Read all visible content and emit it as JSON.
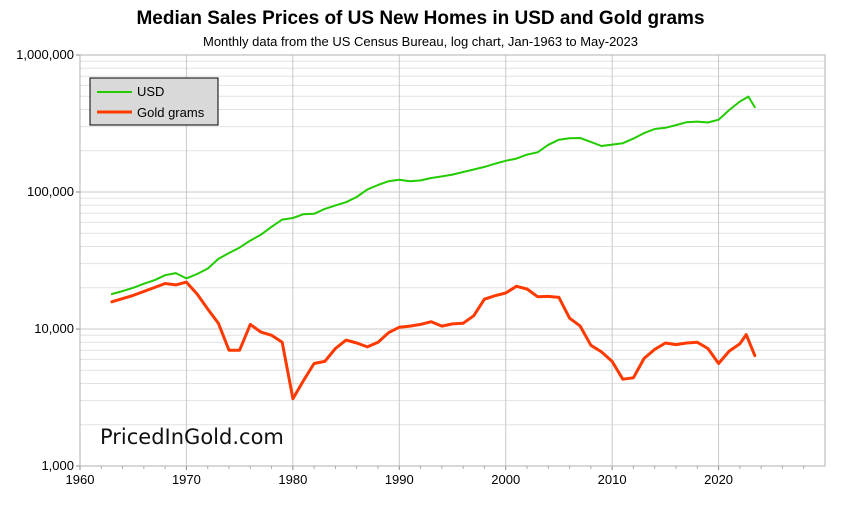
{
  "chart_data": {
    "type": "line",
    "title": "Median Sales Prices of US New Homes in USD and Gold grams",
    "subtitle": "Monthly data from the US Census Bureau, log chart, Jan-1963 to May-2023",
    "xlabel": "",
    "ylabel": "",
    "y_scale": "log",
    "xlim": [
      1960,
      2030
    ],
    "ylim": [
      1000,
      1000000
    ],
    "x_ticks": [
      "1960",
      "1970",
      "1980",
      "1990",
      "2000",
      "2010",
      "2020"
    ],
    "y_ticks": [
      "1,000",
      "10,000",
      "100,000",
      "1,000,000"
    ],
    "grid": true,
    "legend_position": "top-left",
    "watermark": "PricedInGold.com",
    "colors": {
      "usd": "#22cc00",
      "gold": "#ff3a00"
    },
    "series": [
      {
        "name": "USD",
        "points": [
          [
            1963.0,
            18000
          ],
          [
            1964.0,
            18900
          ],
          [
            1965.0,
            20000
          ],
          [
            1966.0,
            21400
          ],
          [
            1967.0,
            22700
          ],
          [
            1968.0,
            24700
          ],
          [
            1969.0,
            25600
          ],
          [
            1970.0,
            23400
          ],
          [
            1971.0,
            25200
          ],
          [
            1972.0,
            27600
          ],
          [
            1973.0,
            32500
          ],
          [
            1974.0,
            35900
          ],
          [
            1975.0,
            39300
          ],
          [
            1976.0,
            44200
          ],
          [
            1977.0,
            48800
          ],
          [
            1978.0,
            55700
          ],
          [
            1979.0,
            62900
          ],
          [
            1980.0,
            64600
          ],
          [
            1981.0,
            68900
          ],
          [
            1982.0,
            69300
          ],
          [
            1983.0,
            75300
          ],
          [
            1984.0,
            79900
          ],
          [
            1985.0,
            84300
          ],
          [
            1986.0,
            92000
          ],
          [
            1987.0,
            104500
          ],
          [
            1988.0,
            112500
          ],
          [
            1989.0,
            120000
          ],
          [
            1990.0,
            122900
          ],
          [
            1991.0,
            120000
          ],
          [
            1992.0,
            121500
          ],
          [
            1993.0,
            126500
          ],
          [
            1994.0,
            130000
          ],
          [
            1995.0,
            133900
          ],
          [
            1996.0,
            140000
          ],
          [
            1997.0,
            146000
          ],
          [
            1998.0,
            152500
          ],
          [
            1999.0,
            161000
          ],
          [
            2000.0,
            169000
          ],
          [
            2001.0,
            175200
          ],
          [
            2002.0,
            187600
          ],
          [
            2003.0,
            195000
          ],
          [
            2004.0,
            221000
          ],
          [
            2005.0,
            240900
          ],
          [
            2006.0,
            246500
          ],
          [
            2007.0,
            247900
          ],
          [
            2008.0,
            232100
          ],
          [
            2009.0,
            216700
          ],
          [
            2010.0,
            221800
          ],
          [
            2011.0,
            227200
          ],
          [
            2012.0,
            245200
          ],
          [
            2013.0,
            268900
          ],
          [
            2014.0,
            288500
          ],
          [
            2015.0,
            294200
          ],
          [
            2016.0,
            307800
          ],
          [
            2017.0,
            323100
          ],
          [
            2018.0,
            326400
          ],
          [
            2019.0,
            321500
          ],
          [
            2020.0,
            336900
          ],
          [
            2021.0,
            397100
          ],
          [
            2022.0,
            457800
          ],
          [
            2022.8,
            496800
          ],
          [
            2023.4,
            416300
          ]
        ]
      },
      {
        "name": "Gold grams",
        "points": [
          [
            1963.0,
            15800
          ],
          [
            1965.0,
            17600
          ],
          [
            1967.0,
            20100
          ],
          [
            1968.0,
            21500
          ],
          [
            1969.0,
            21000
          ],
          [
            1970.0,
            22000
          ],
          [
            1971.0,
            18000
          ],
          [
            1972.0,
            14000
          ],
          [
            1973.0,
            11000
          ],
          [
            1974.0,
            7000
          ],
          [
            1975.0,
            7000
          ],
          [
            1976.0,
            10800
          ],
          [
            1977.0,
            9500
          ],
          [
            1978.0,
            9000
          ],
          [
            1979.0,
            8000
          ],
          [
            1980.0,
            3100
          ],
          [
            1981.0,
            4200
          ],
          [
            1982.0,
            5600
          ],
          [
            1983.0,
            5800
          ],
          [
            1984.0,
            7200
          ],
          [
            1985.0,
            8300
          ],
          [
            1986.0,
            7900
          ],
          [
            1987.0,
            7400
          ],
          [
            1988.0,
            8000
          ],
          [
            1989.0,
            9400
          ],
          [
            1990.0,
            10300
          ],
          [
            1991.0,
            10500
          ],
          [
            1992.0,
            10800
          ],
          [
            1993.0,
            11300
          ],
          [
            1994.0,
            10500
          ],
          [
            1995.0,
            10900
          ],
          [
            1996.0,
            11000
          ],
          [
            1997.0,
            12500
          ],
          [
            1998.0,
            16500
          ],
          [
            1999.0,
            17500
          ],
          [
            2000.0,
            18300
          ],
          [
            2001.0,
            20500
          ],
          [
            2002.0,
            19600
          ],
          [
            2003.0,
            17200
          ],
          [
            2004.0,
            17300
          ],
          [
            2005.0,
            17000
          ],
          [
            2006.0,
            12000
          ],
          [
            2007.0,
            10500
          ],
          [
            2008.0,
            7600
          ],
          [
            2009.0,
            6800
          ],
          [
            2010.0,
            5800
          ],
          [
            2011.0,
            4300
          ],
          [
            2012.0,
            4400
          ],
          [
            2013.0,
            6100
          ],
          [
            2014.0,
            7100
          ],
          [
            2015.0,
            7900
          ],
          [
            2016.0,
            7700
          ],
          [
            2017.0,
            7900
          ],
          [
            2018.0,
            8000
          ],
          [
            2019.0,
            7200
          ],
          [
            2020.0,
            5600
          ],
          [
            2021.0,
            6900
          ],
          [
            2022.0,
            7800
          ],
          [
            2022.6,
            9100
          ],
          [
            2023.4,
            6400
          ]
        ]
      }
    ]
  }
}
